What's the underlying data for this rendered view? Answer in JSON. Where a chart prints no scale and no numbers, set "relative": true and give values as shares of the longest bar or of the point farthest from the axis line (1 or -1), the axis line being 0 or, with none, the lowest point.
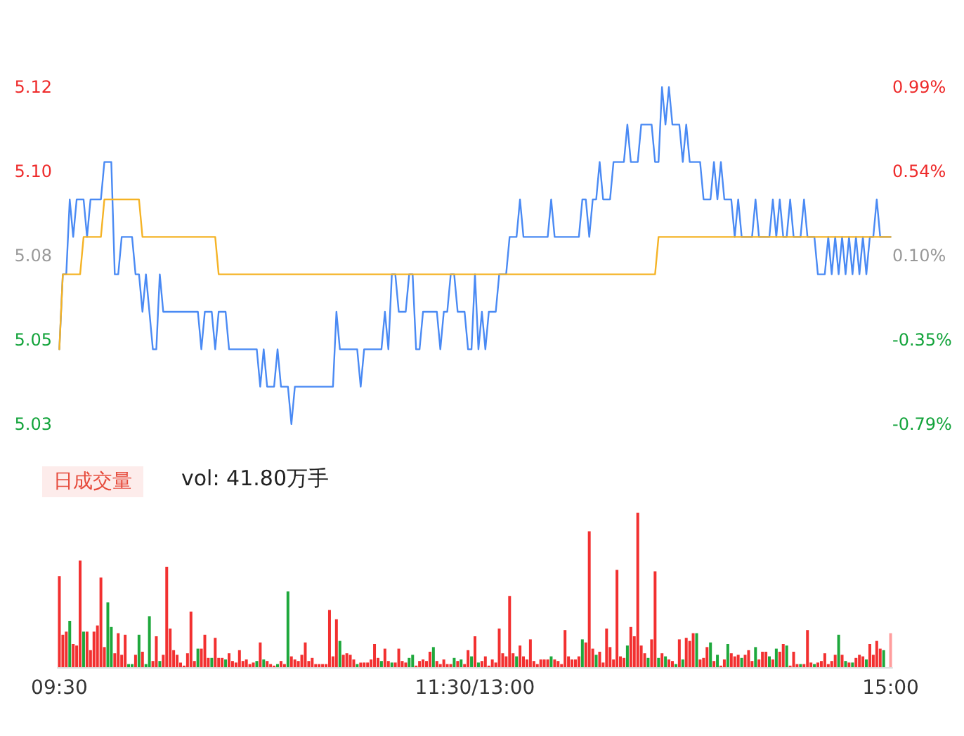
{
  "chart_data": [
    {
      "type": "line",
      "categories": [
        null,
        null,
        null,
        null,
        null,
        null,
        null,
        null,
        null,
        null,
        null,
        null,
        null,
        null,
        null,
        null,
        null,
        null,
        null,
        null,
        null,
        null,
        null,
        null,
        null,
        null,
        null,
        null,
        null,
        null,
        null,
        null,
        null,
        null,
        null,
        null,
        null,
        null,
        null,
        null,
        null,
        null,
        null,
        null,
        null,
        null,
        null,
        null,
        null,
        null,
        null,
        null,
        null,
        null,
        null,
        null,
        null,
        null,
        null,
        null,
        null,
        null,
        null,
        null,
        null,
        null,
        null,
        null,
        null,
        null,
        null,
        null,
        null,
        null,
        null,
        null,
        null,
        null,
        null,
        null,
        null,
        null,
        null,
        null,
        null,
        null,
        null,
        null,
        null,
        null,
        null,
        null,
        null,
        null,
        null,
        null,
        null,
        null,
        null,
        null,
        null,
        null,
        null,
        null,
        null,
        null,
        null,
        null,
        null,
        null,
        null,
        null,
        null,
        null,
        null,
        null,
        null,
        null,
        null,
        null,
        null,
        null,
        null,
        null,
        null,
        null,
        null,
        null,
        null,
        null,
        null,
        null,
        null,
        null,
        null,
        null,
        null,
        null,
        null,
        null,
        null,
        null,
        null,
        null,
        null,
        null,
        null,
        null,
        null,
        null,
        null,
        null,
        null,
        null,
        null,
        null,
        null,
        null,
        null,
        null,
        null,
        null,
        null,
        null,
        null,
        null,
        null,
        null,
        null,
        null,
        null,
        null,
        null,
        null,
        null,
        null,
        null,
        null,
        null,
        null,
        null,
        null,
        null,
        null,
        null,
        null,
        null,
        null,
        null,
        null,
        null,
        null,
        null,
        null,
        null,
        null,
        null,
        null,
        null,
        null,
        null,
        null,
        null,
        null,
        null,
        null,
        null,
        null,
        null,
        null,
        null,
        null,
        null,
        null,
        null,
        null,
        null,
        null,
        null,
        null,
        null,
        null,
        null,
        null,
        null,
        null,
        null,
        null,
        null,
        null,
        null,
        null,
        null,
        null,
        null,
        null,
        null,
        null,
        null,
        null,
        null
      ],
      "ylim": [
        5.03,
        5.12
      ],
      "yticks": [
        {
          "value": 5.03,
          "label": "5.03"
        },
        {
          "value": 5.0525,
          "label": "5.05"
        },
        {
          "value": 5.075,
          "label": "5.08"
        },
        {
          "value": 5.0975,
          "label": "5.10"
        },
        {
          "value": 5.12,
          "label": "5.12"
        }
      ],
      "y2lim": [
        -0.79,
        0.99
      ],
      "y2ticks": [
        {
          "value": -0.79,
          "label": "-0.79%"
        },
        {
          "value": -0.345,
          "label": "-0.35%"
        },
        {
          "value": 0.1,
          "label": "0.10%"
        },
        {
          "value": 0.545,
          "label": "0.54%"
        },
        {
          "value": 0.99,
          "label": "0.99%"
        }
      ],
      "tick_labels": "y",
      "grid": false,
      "marker": "none",
      "line_style": "solid",
      "series": [
        {
          "type": "line",
          "color": "#4a8af4",
          "values": [
            5.05,
            5.07,
            5.07,
            5.09,
            5.08,
            5.09,
            5.09,
            5.09,
            5.08,
            5.09,
            5.09,
            5.09,
            5.09,
            5.1,
            5.1,
            5.1,
            5.07,
            5.07,
            5.08,
            5.08,
            5.08,
            5.08,
            5.07,
            5.07,
            5.06,
            5.07,
            5.06,
            5.05,
            5.05,
            5.07,
            5.06,
            5.06,
            5.06,
            5.06,
            5.06,
            5.06,
            5.06,
            5.06,
            5.06,
            5.06,
            5.06,
            5.05,
            5.06,
            5.06,
            5.06,
            5.05,
            5.06,
            5.06,
            5.06,
            5.05,
            5.05,
            5.05,
            5.05,
            5.05,
            5.05,
            5.05,
            5.05,
            5.05,
            5.04,
            5.05,
            5.04,
            5.04,
            5.04,
            5.05,
            5.04,
            5.04,
            5.04,
            5.03,
            5.04,
            5.04,
            5.04,
            5.04,
            5.04,
            5.04,
            5.04,
            5.04,
            5.04,
            5.04,
            5.04,
            5.04,
            5.06,
            5.05,
            5.05,
            5.05,
            5.05,
            5.05,
            5.05,
            5.04,
            5.05,
            5.05,
            5.05,
            5.05,
            5.05,
            5.05,
            5.06,
            5.05,
            5.07,
            5.07,
            5.06,
            5.06,
            5.06,
            5.07,
            5.07,
            5.05,
            5.05,
            5.06,
            5.06,
            5.06,
            5.06,
            5.06,
            5.05,
            5.06,
            5.06,
            5.07,
            5.07,
            5.06,
            5.06,
            5.06,
            5.05,
            5.05,
            5.07,
            5.05,
            5.06,
            5.05,
            5.06,
            5.06,
            5.06,
            5.07,
            5.07,
            5.07,
            5.08,
            5.08,
            5.08,
            5.09,
            5.08,
            5.08,
            5.08,
            5.08,
            5.08,
            5.08,
            5.08,
            5.08,
            5.09,
            5.08,
            5.08,
            5.08,
            5.08,
            5.08,
            5.08,
            5.08,
            5.08,
            5.09,
            5.09,
            5.08,
            5.09,
            5.09,
            5.1,
            5.09,
            5.09,
            5.09,
            5.1,
            5.1,
            5.1,
            5.1,
            5.11,
            5.1,
            5.1,
            5.1,
            5.11,
            5.11,
            5.11,
            5.11,
            5.1,
            5.1,
            5.12,
            5.11,
            5.12,
            5.11,
            5.11,
            5.11,
            5.1,
            5.11,
            5.1,
            5.1,
            5.1,
            5.1,
            5.09,
            5.09,
            5.09,
            5.1,
            5.09,
            5.1,
            5.09,
            5.09,
            5.09,
            5.08,
            5.09,
            5.08,
            5.08,
            5.08,
            5.08,
            5.09,
            5.08,
            5.08,
            5.08,
            5.08,
            5.09,
            5.08,
            5.09,
            5.08,
            5.08,
            5.09,
            5.08,
            5.08,
            5.08,
            5.09,
            5.08,
            5.08,
            5.08,
            5.07,
            5.07,
            5.07,
            5.08,
            5.07,
            5.08,
            5.07,
            5.08,
            5.07,
            5.08,
            5.07,
            5.08,
            5.07,
            5.08,
            5.07,
            5.08,
            5.08,
            5.09,
            5.08,
            5.08,
            5.08,
            5.08
          ]
        },
        {
          "type": "line",
          "color": "#f5b325",
          "values": [
            5.05,
            5.07,
            5.07,
            5.07,
            5.07,
            5.07,
            5.07,
            5.08,
            5.08,
            5.08,
            5.08,
            5.08,
            5.08,
            5.09,
            5.09,
            5.09,
            5.09,
            5.09,
            5.09,
            5.09,
            5.09,
            5.09,
            5.09,
            5.09,
            5.08,
            5.08,
            5.08,
            5.08,
            5.08,
            5.08,
            5.08,
            5.08,
            5.08,
            5.08,
            5.08,
            5.08,
            5.08,
            5.08,
            5.08,
            5.08,
            5.08,
            5.08,
            5.08,
            5.08,
            5.08,
            5.08,
            5.07,
            5.07,
            5.07,
            5.07,
            5.07,
            5.07,
            5.07,
            5.07,
            5.07,
            5.07,
            5.07,
            5.07,
            5.07,
            5.07,
            5.07,
            5.07,
            5.07,
            5.07,
            5.07,
            5.07,
            5.07,
            5.07,
            5.07,
            5.07,
            5.07,
            5.07,
            5.07,
            5.07,
            5.07,
            5.07,
            5.07,
            5.07,
            5.07,
            5.07,
            5.07,
            5.07,
            5.07,
            5.07,
            5.07,
            5.07,
            5.07,
            5.07,
            5.07,
            5.07,
            5.07,
            5.07,
            5.07,
            5.07,
            5.07,
            5.07,
            5.07,
            5.07,
            5.07,
            5.07,
            5.07,
            5.07,
            5.07,
            5.07,
            5.07,
            5.07,
            5.07,
            5.07,
            5.07,
            5.07,
            5.07,
            5.07,
            5.07,
            5.07,
            5.07,
            5.07,
            5.07,
            5.07,
            5.07,
            5.07,
            5.07,
            5.07,
            5.07,
            5.07,
            5.07,
            5.07,
            5.07,
            5.07,
            5.07,
            5.07,
            5.07,
            5.07,
            5.07,
            5.07,
            5.07,
            5.07,
            5.07,
            5.07,
            5.07,
            5.07,
            5.07,
            5.07,
            5.07,
            5.07,
            5.07,
            5.07,
            5.07,
            5.07,
            5.07,
            5.07,
            5.07,
            5.07,
            5.07,
            5.07,
            5.07,
            5.07,
            5.07,
            5.07,
            5.07,
            5.07,
            5.07,
            5.07,
            5.07,
            5.07,
            5.07,
            5.07,
            5.07,
            5.07,
            5.07,
            5.07,
            5.07,
            5.07,
            5.07,
            5.08,
            5.08,
            5.08,
            5.08,
            5.08,
            5.08,
            5.08,
            5.08,
            5.08,
            5.08,
            5.08,
            5.08,
            5.08,
            5.08,
            5.08,
            5.08,
            5.08,
            5.08,
            5.08,
            5.08,
            5.08,
            5.08,
            5.08,
            5.08,
            5.08,
            5.08,
            5.08,
            5.08,
            5.08,
            5.08,
            5.08,
            5.08,
            5.08,
            5.08,
            5.08,
            5.08,
            5.08,
            5.08,
            5.08,
            5.08,
            5.08,
            5.08,
            5.08,
            5.08,
            5.08,
            5.08,
            5.08,
            5.08,
            5.08,
            5.08,
            5.08,
            5.08,
            5.08,
            5.08,
            5.08,
            5.08,
            5.08,
            5.08,
            5.08,
            5.08,
            5.08,
            5.08,
            5.08,
            5.08,
            5.08,
            5.08,
            5.08,
            5.08
          ]
        }
      ]
    },
    {
      "type": "bar",
      "relative": true,
      "title": "日成交量",
      "annotations": [
        "vol: 41.80万手"
      ],
      "grid": false,
      "tick_labels": "x",
      "categories": [
        "09:30",
        null,
        null,
        null,
        null,
        null,
        null,
        null,
        null,
        null,
        null,
        null,
        null,
        null,
        null,
        null,
        null,
        null,
        null,
        null,
        null,
        null,
        null,
        null,
        null,
        null,
        null,
        null,
        null,
        null,
        null,
        null,
        null,
        null,
        null,
        null,
        null,
        null,
        null,
        null,
        null,
        null,
        null,
        null,
        null,
        null,
        null,
        null,
        null,
        null,
        null,
        null,
        null,
        null,
        null,
        null,
        null,
        null,
        null,
        null,
        null,
        null,
        null,
        null,
        null,
        null,
        null,
        null,
        null,
        null,
        null,
        null,
        null,
        null,
        null,
        null,
        null,
        null,
        null,
        null,
        null,
        null,
        null,
        null,
        null,
        null,
        null,
        null,
        null,
        null,
        null,
        null,
        null,
        null,
        null,
        null,
        null,
        null,
        null,
        null,
        null,
        null,
        null,
        null,
        null,
        null,
        null,
        null,
        null,
        null,
        null,
        null,
        null,
        null,
        null,
        null,
        null,
        null,
        null,
        null,
        "11:30/13:00",
        null,
        null,
        null,
        null,
        null,
        null,
        null,
        null,
        null,
        null,
        null,
        null,
        null,
        null,
        null,
        null,
        null,
        null,
        null,
        null,
        null,
        null,
        null,
        null,
        null,
        null,
        null,
        null,
        null,
        null,
        null,
        null,
        null,
        null,
        null,
        null,
        null,
        null,
        null,
        null,
        null,
        null,
        null,
        null,
        null,
        null,
        null,
        null,
        null,
        null,
        null,
        null,
        null,
        null,
        null,
        null,
        null,
        null,
        null,
        null,
        null,
        null,
        null,
        null,
        null,
        null,
        null,
        null,
        null,
        null,
        null,
        null,
        null,
        null,
        null,
        null,
        null,
        null,
        null,
        null,
        null,
        null,
        null,
        null,
        null,
        null,
        null,
        null,
        null,
        null,
        null,
        null,
        null,
        null,
        null,
        null,
        null,
        null,
        null,
        null,
        null,
        null,
        null,
        null,
        null,
        null,
        null,
        null,
        null,
        null,
        null,
        null,
        null,
        null,
        null,
        null,
        null,
        null,
        null,
        "15:00"
      ],
      "values": [
        0.59,
        0.21,
        0.23,
        0.3,
        0.15,
        0.14,
        0.69,
        0.23,
        0.23,
        0.11,
        0.23,
        0.27,
        0.58,
        0.13,
        0.42,
        0.26,
        0.09,
        0.22,
        0.08,
        0.21,
        0.02,
        0.02,
        0.08,
        0.21,
        0.1,
        0.02,
        0.33,
        0.04,
        0.2,
        0.04,
        0.08,
        0.65,
        0.25,
        0.11,
        0.08,
        0.03,
        0.01,
        0.09,
        0.36,
        0.04,
        0.12,
        0.12,
        0.21,
        0.06,
        0.06,
        0.19,
        0.06,
        0.06,
        0.05,
        0.09,
        0.04,
        0.03,
        0.11,
        0.04,
        0.05,
        0.02,
        0.03,
        0.04,
        0.16,
        0.05,
        0.04,
        0.02,
        0.01,
        0.02,
        0.04,
        0.02,
        0.49,
        0.07,
        0.05,
        0.04,
        0.08,
        0.16,
        0.04,
        0.06,
        0.02,
        0.02,
        0.02,
        0.02,
        0.37,
        0.07,
        0.31,
        0.17,
        0.08,
        0.09,
        0.08,
        0.05,
        0.02,
        0.03,
        0.03,
        0.03,
        0.05,
        0.15,
        0.06,
        0.04,
        0.12,
        0.04,
        0.03,
        0.03,
        0.12,
        0.04,
        0.03,
        0.06,
        0.08,
        0.01,
        0.04,
        0.05,
        0.04,
        0.1,
        0.13,
        0.04,
        0.02,
        0.05,
        0.02,
        0.02,
        0.06,
        0.04,
        0.05,
        0.02,
        0.11,
        0.07,
        0.2,
        0.03,
        0.04,
        0.07,
        0.01,
        0.05,
        0.03,
        0.25,
        0.09,
        0.07,
        0.46,
        0.09,
        0.07,
        0.14,
        0.07,
        0.05,
        0.18,
        0.04,
        0.02,
        0.05,
        0.05,
        0.05,
        0.07,
        0.05,
        0.04,
        0.02,
        0.24,
        0.07,
        0.05,
        0.05,
        0.07,
        0.18,
        0.16,
        0.88,
        0.12,
        0.08,
        0.1,
        0.03,
        0.25,
        0.13,
        0.05,
        0.63,
        0.07,
        0.06,
        0.14,
        0.26,
        0.2,
        1,
        0.14,
        0.09,
        0.06,
        0.18,
        0.62,
        0.06,
        0.09,
        0.07,
        0.05,
        0.04,
        0.02,
        0.18,
        0.05,
        0.19,
        0.17,
        0.22,
        0.22,
        0.05,
        0.06,
        0.13,
        0.16,
        0.04,
        0.08,
        0.01,
        0.05,
        0.15,
        0.09,
        0.07,
        0.08,
        0.06,
        0.08,
        0.11,
        0.04,
        0.13,
        0.05,
        0.1,
        0.1,
        0.07,
        0.05,
        0.12,
        0.1,
        0.15,
        0.14,
        0.01,
        0.1,
        0.02,
        0.02,
        0.02,
        0.24,
        0.03,
        0.02,
        0.03,
        0.04,
        0.09,
        0.02,
        0.04,
        0.08,
        0.21,
        0.08,
        0.04,
        0.03,
        0.03,
        0.06,
        0.08,
        0.07,
        0.05,
        0.15,
        0.08,
        0.17,
        0.12,
        0.11,
        null,
        0.22
      ],
      "colors": [
        "#f23030",
        "#f23030",
        "#f23030",
        "#1ea83c",
        "#f23030",
        "#f23030",
        "#f23030",
        "#1ea83c",
        "#f23030",
        "#f23030",
        "#f23030",
        "#f23030",
        "#f23030",
        "#f23030",
        "#1ea83c",
        "#1ea83c",
        "#f23030",
        "#f23030",
        "#f23030",
        "#f23030",
        "#1ea83c",
        "#1ea83c",
        "#f23030",
        "#1ea83c",
        "#f23030",
        "#1ea83c",
        "#1ea83c",
        "#f23030",
        "#f23030",
        "#1ea83c",
        "#f23030",
        "#f23030",
        "#f23030",
        "#f23030",
        "#f23030",
        "#f23030",
        "#f23030",
        "#f23030",
        "#f23030",
        "#f23030",
        "#1ea83c",
        "#f23030",
        "#f23030",
        "#f23030",
        "#1ea83c",
        "#f23030",
        "#f23030",
        "#f23030",
        "#1ea83c",
        "#f23030",
        "#f23030",
        "#f23030",
        "#f23030",
        "#f23030",
        "#f23030",
        "#f23030",
        "#f23030",
        "#1ea83c",
        "#f23030",
        "#1ea83c",
        "#f23030",
        "#f23030",
        "#f23030",
        "#1ea83c",
        "#f23030",
        "#f23030",
        "#1ea83c",
        "#f23030",
        "#f23030",
        "#f23030",
        "#f23030",
        "#f23030",
        "#f23030",
        "#f23030",
        "#f23030",
        "#f23030",
        "#f23030",
        "#f23030",
        "#f23030",
        "#f23030",
        "#f23030",
        "#1ea83c",
        "#f23030",
        "#f23030",
        "#f23030",
        "#f23030",
        "#1ea83c",
        "#f23030",
        "#f23030",
        "#f23030",
        "#f23030",
        "#f23030",
        "#f23030",
        "#1ea83c",
        "#f23030",
        "#f23030",
        "#1ea83c",
        "#f23030",
        "#f23030",
        "#f23030",
        "#f23030",
        "#1ea83c",
        "#1ea83c",
        "#f23030",
        "#f23030",
        "#f23030",
        "#f23030",
        "#f23030",
        "#1ea83c",
        "#f23030",
        "#f23030",
        "#f23030",
        "#f23030",
        "#f23030",
        "#1ea83c",
        "#f23030",
        "#1ea83c",
        "#f23030",
        "#f23030",
        "#1ea83c",
        "#f23030",
        "#1ea83c",
        "#f23030",
        "#f23030",
        "#f23030",
        "#f23030",
        "#f23030",
        "#f23030",
        "#f23030",
        "#f23030",
        "#f23030",
        "#f23030",
        "#1ea83c",
        "#f23030",
        "#f23030",
        "#f23030",
        "#f23030",
        "#f23030",
        "#f23030",
        "#f23030",
        "#f23030",
        "#f23030",
        "#1ea83c",
        "#f23030",
        "#f23030",
        "#f23030",
        "#f23030",
        "#f23030",
        "#f23030",
        "#f23030",
        "#f23030",
        "#1ea83c",
        "#f23030",
        "#f23030",
        "#f23030",
        "#1ea83c",
        "#f23030",
        "#f23030",
        "#f23030",
        "#f23030",
        "#f23030",
        "#f23030",
        "#f23030",
        "#f23030",
        "#1ea83c",
        "#f23030",
        "#f23030",
        "#f23030",
        "#f23030",
        "#f23030",
        "#1ea83c",
        "#f23030",
        "#f23030",
        "#1ea83c",
        "#f23030",
        "#1ea83c",
        "#f23030",
        "#f23030",
        "#1ea83c",
        "#f23030",
        "#1ea83c",
        "#f23030",
        "#f23030",
        "#f23030",
        "#1ea83c",
        "#f23030",
        "#f23030",
        "#f23030",
        "#1ea83c",
        "#f23030",
        "#1ea83c",
        "#f23030",
        "#f23030",
        "#1ea83c",
        "#f23030",
        "#f23030",
        "#f23030",
        "#1ea83c",
        "#f23030",
        "#f23030",
        "#f23030",
        "#1ea83c",
        "#f23030",
        "#f23030",
        "#f23030",
        "#1ea83c",
        "#f23030",
        "#1ea83c",
        "#f23030",
        "#f23030",
        "#1ea83c",
        "#f23030",
        "#f23030",
        "#f23030",
        "#1ea83c",
        "#f23030",
        "#f23030",
        "#f23030",
        "#1ea83c",
        "#f23030",
        "#f23030",
        "#f23030",
        "#f23030",
        "#f23030",
        "#f23030",
        "#1ea83c",
        "#f23030",
        "#1ea83c",
        "#f23030",
        "#1ea83c",
        "#f23030",
        "#f23030",
        "#f23030",
        "#1ea83c",
        "#f23030",
        "#f23030",
        "#f23030",
        "#f23030",
        "#1ea83c",
        "#f23030",
        "#ff9d9d"
      ]
    }
  ]
}
